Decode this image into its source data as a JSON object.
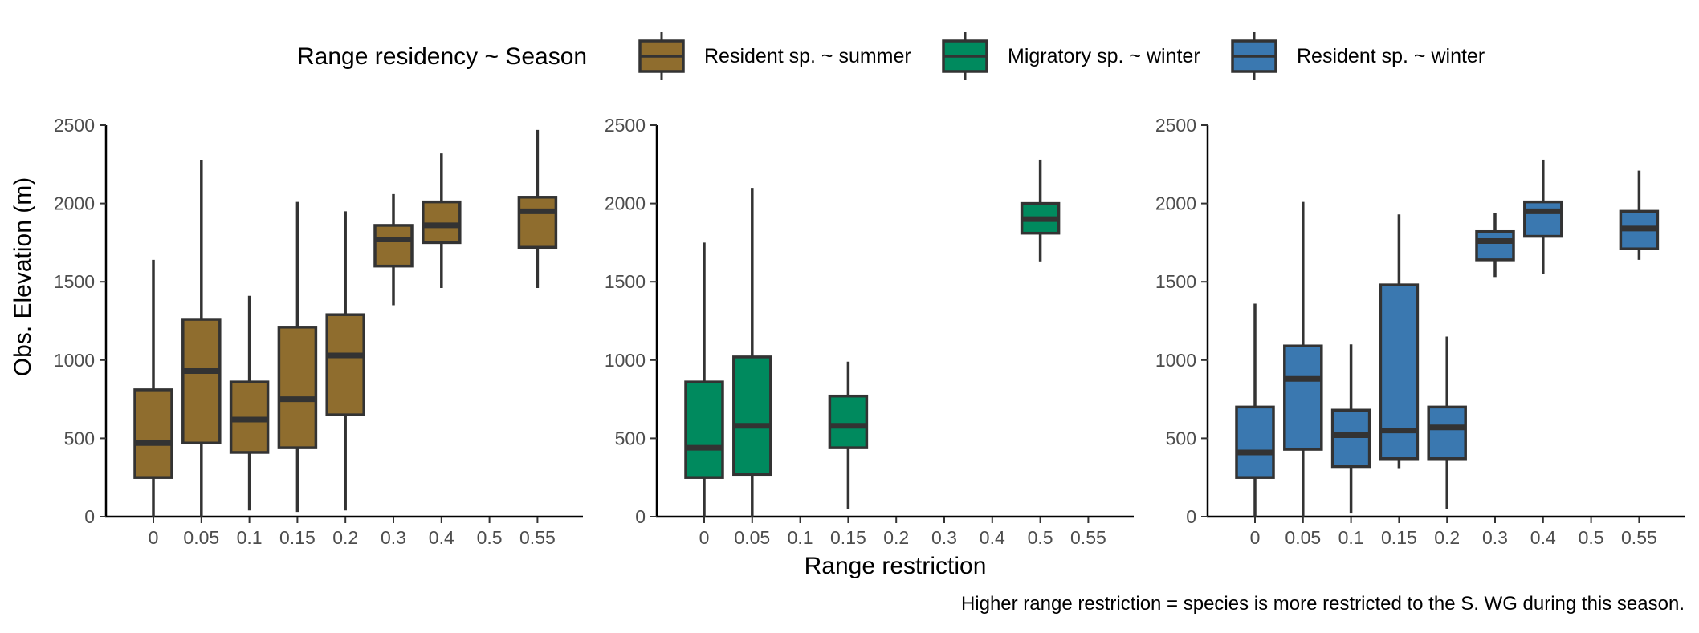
{
  "chart_data": {
    "type": "boxplot",
    "legend": {
      "title": "Range residency ~ Season",
      "position": "top",
      "entries": [
        {
          "label": "Resident sp. ~ summer",
          "color": "#8f6d2e"
        },
        {
          "label": "Migratory sp. ~ winter",
          "color": "#008a5e"
        },
        {
          "label": "Resident sp. ~ winter",
          "color": "#3a78b0"
        }
      ]
    },
    "ylabel": "Obs. Elevation (m)",
    "xlabel": "Range restriction",
    "caption": "Higher range restriction = species is more restricted to the S. WG during this season.",
    "categories": [
      "0",
      "0.05",
      "0.1",
      "0.15",
      "0.2",
      "0.3",
      "0.4",
      "0.5",
      "0.55"
    ],
    "ylim": [
      0,
      2500
    ],
    "yticks": [
      0,
      500,
      1000,
      1500,
      2000,
      2500
    ],
    "grid": false,
    "panels": [
      {
        "series": "Resident sp. ~ summer",
        "color": "#8f6d2e",
        "boxes": [
          {
            "category": "0",
            "whisker_low": 0,
            "q1": 250,
            "median": 470,
            "q3": 810,
            "whisker_high": 1640
          },
          {
            "category": "0.05",
            "whisker_low": 0,
            "q1": 470,
            "median": 930,
            "q3": 1260,
            "whisker_high": 2280
          },
          {
            "category": "0.1",
            "whisker_low": 40,
            "q1": 410,
            "median": 620,
            "q3": 860,
            "whisker_high": 1410
          },
          {
            "category": "0.15",
            "whisker_low": 30,
            "q1": 440,
            "median": 750,
            "q3": 1210,
            "whisker_high": 2010
          },
          {
            "category": "0.2",
            "whisker_low": 40,
            "q1": 650,
            "median": 1030,
            "q3": 1290,
            "whisker_high": 1950
          },
          {
            "category": "0.3",
            "whisker_low": 1350,
            "q1": 1600,
            "median": 1770,
            "q3": 1860,
            "whisker_high": 2060
          },
          {
            "category": "0.4",
            "whisker_low": 1460,
            "q1": 1750,
            "median": 1860,
            "q3": 2010,
            "whisker_high": 2320
          },
          {
            "category": "0.55",
            "whisker_low": 1460,
            "q1": 1720,
            "median": 1950,
            "q3": 2040,
            "whisker_high": 2470
          }
        ]
      },
      {
        "series": "Migratory sp. ~ winter",
        "color": "#008a5e",
        "boxes": [
          {
            "category": "0",
            "whisker_low": 0,
            "q1": 250,
            "median": 440,
            "q3": 860,
            "whisker_high": 1750
          },
          {
            "category": "0.05",
            "whisker_low": 0,
            "q1": 270,
            "median": 580,
            "q3": 1020,
            "whisker_high": 2100
          },
          {
            "category": "0.15",
            "whisker_low": 50,
            "q1": 440,
            "median": 580,
            "q3": 770,
            "whisker_high": 990
          },
          {
            "category": "0.5",
            "whisker_low": 1630,
            "q1": 1810,
            "median": 1900,
            "q3": 2000,
            "whisker_high": 2280
          }
        ]
      },
      {
        "series": "Resident sp. ~ winter",
        "color": "#3a78b0",
        "boxes": [
          {
            "category": "0",
            "whisker_low": 0,
            "q1": 250,
            "median": 410,
            "q3": 700,
            "whisker_high": 1360
          },
          {
            "category": "0.05",
            "whisker_low": 0,
            "q1": 430,
            "median": 880,
            "q3": 1090,
            "whisker_high": 2010
          },
          {
            "category": "0.1",
            "whisker_low": 20,
            "q1": 320,
            "median": 520,
            "q3": 680,
            "whisker_high": 1100
          },
          {
            "category": "0.15",
            "whisker_low": 310,
            "q1": 370,
            "median": 550,
            "q3": 1480,
            "whisker_high": 1930
          },
          {
            "category": "0.2",
            "whisker_low": 50,
            "q1": 370,
            "median": 570,
            "q3": 700,
            "whisker_high": 1150
          },
          {
            "category": "0.3",
            "whisker_low": 1530,
            "q1": 1640,
            "median": 1760,
            "q3": 1820,
            "whisker_high": 1940
          },
          {
            "category": "0.4",
            "whisker_low": 1550,
            "q1": 1790,
            "median": 1950,
            "q3": 2010,
            "whisker_high": 2280
          },
          {
            "category": "0.55",
            "whisker_low": 1640,
            "q1": 1710,
            "median": 1840,
            "q3": 1950,
            "whisker_high": 2210
          }
        ]
      }
    ]
  }
}
